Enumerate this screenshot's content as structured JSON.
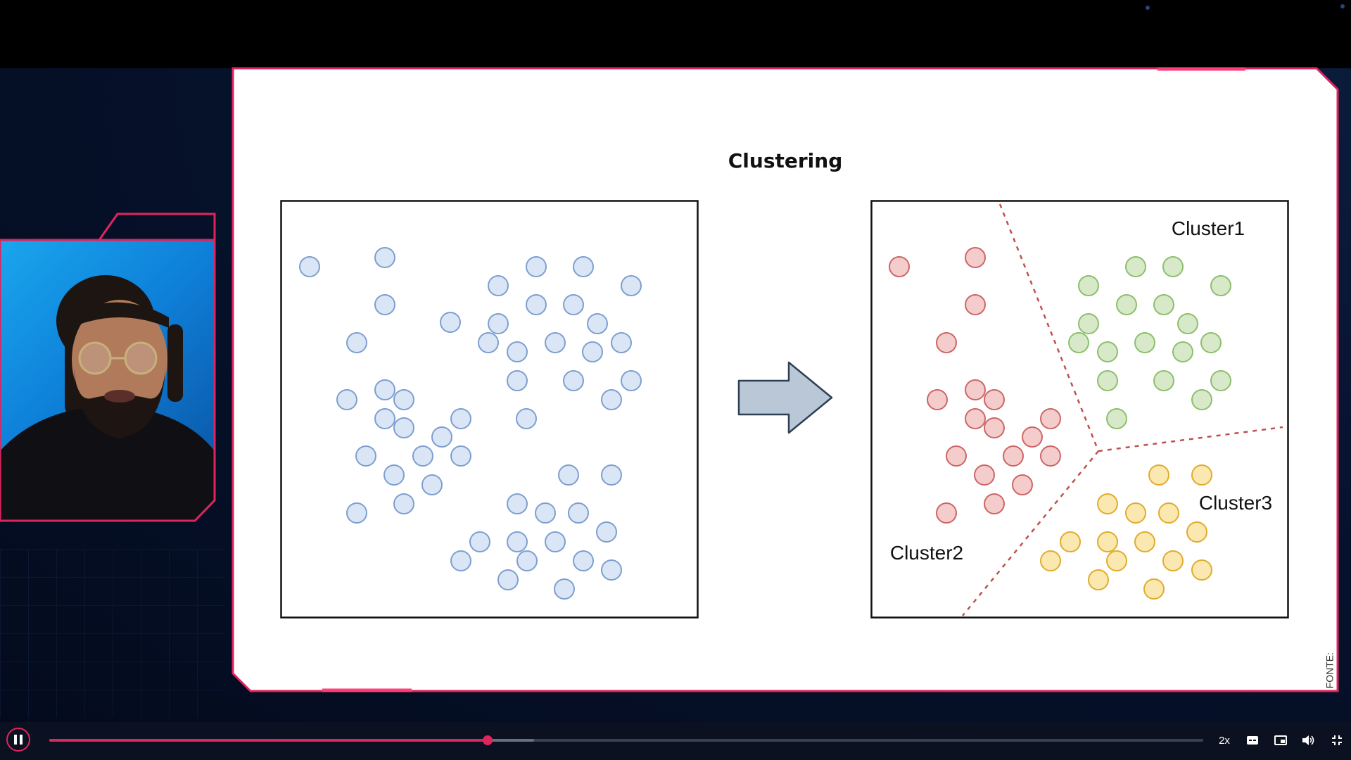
{
  "slide": {
    "title": "Clustering",
    "source_label": "FONTE:"
  },
  "diagram": {
    "cluster_labels": [
      "Cluster1",
      "Cluster2",
      "Cluster3"
    ],
    "colors": {
      "unclustered_fill": "#dae6f5",
      "unclustered_stroke": "#7d9fd0",
      "cluster1_fill": "#d7e9c8",
      "cluster1_stroke": "#8cbf6c",
      "cluster2_fill": "#f4cccc",
      "cluster2_stroke": "#cc6666",
      "cluster3_fill": "#fbe8b0",
      "cluster3_stroke": "#dfad2c",
      "divider": "#c0504d",
      "arrow_fill": "#b9c7d6",
      "arrow_stroke": "#2d3f52"
    }
  },
  "player": {
    "speed_label": "2x",
    "progress_fraction": 0.38,
    "buffered_fraction": 0.42,
    "icons": [
      "pause-icon",
      "captions-icon",
      "picture-in-picture-icon",
      "volume-icon",
      "exit-fullscreen-icon"
    ]
  }
}
